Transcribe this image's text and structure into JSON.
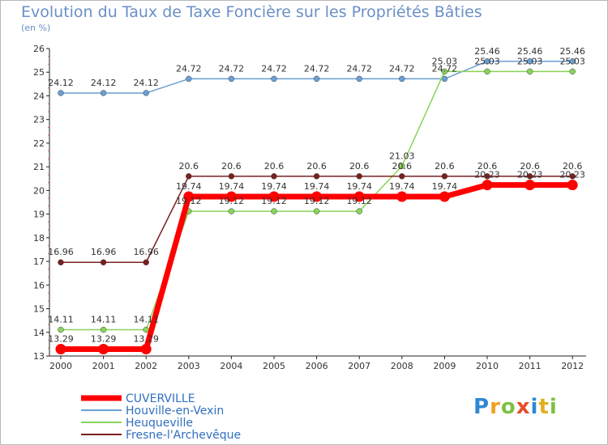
{
  "chart_data": {
    "type": "line",
    "title": "Evolution du Taux de Taxe Foncière sur les Propriétés Bâties",
    "ylabel": "(en %)",
    "xlabel": "",
    "ylim": [
      13,
      26
    ],
    "yticks": [
      13,
      14,
      15,
      16,
      17,
      18,
      19,
      20,
      21,
      22,
      23,
      24,
      25,
      26
    ],
    "categories": [
      "2000",
      "2001",
      "2002",
      "2003",
      "2004",
      "2005",
      "2006",
      "2007",
      "2008",
      "2009",
      "2010",
      "2011",
      "2012"
    ],
    "series": [
      {
        "name": "CUVERVILLE",
        "color": "#ff0000",
        "values": [
          13.29,
          13.29,
          13.29,
          19.74,
          19.74,
          19.74,
          19.74,
          19.74,
          19.74,
          19.74,
          20.23,
          20.23,
          20.23
        ],
        "labels": [
          "13.29",
          "13.29",
          "13.29",
          "19.74",
          "19.74",
          "19.74",
          "19.74",
          "19.74",
          "19.74",
          "19.74",
          "20.23",
          "20.23",
          "20.23"
        ]
      },
      {
        "name": "Houville-en-Vexin",
        "color": "#6a9fd4",
        "values": [
          24.12,
          24.12,
          24.12,
          24.72,
          24.72,
          24.72,
          24.72,
          24.72,
          24.72,
          24.72,
          25.46,
          25.46,
          25.46
        ],
        "labels": [
          "24.12",
          "24.12",
          "24.12",
          "24.72",
          "24.72",
          "24.72",
          "24.72",
          "24.72",
          "24.72",
          "24.72",
          "25.46",
          "25.46",
          "25.46"
        ]
      },
      {
        "name": "Heuqueville",
        "color": "#88d45a",
        "values": [
          14.11,
          14.11,
          14.11,
          19.12,
          19.12,
          19.12,
          19.12,
          19.12,
          21.03,
          25.03,
          25.03,
          25.03,
          25.03
        ],
        "labels": [
          "14.11",
          "14.11",
          "14.11",
          "19.12",
          "19.12",
          "19.12",
          "19.12",
          "19.12",
          "21.03",
          "25.03",
          "25.03",
          "25.03",
          "25.03"
        ]
      },
      {
        "name": "Fresne-l'Archevêque",
        "color": "#7a2020",
        "values": [
          16.96,
          16.96,
          16.96,
          20.6,
          20.6,
          20.6,
          20.6,
          20.6,
          20.6,
          20.6,
          20.6,
          20.6,
          20.6
        ],
        "labels": [
          "16.96",
          "16.96",
          "16.96",
          "20.6",
          "20.6",
          "20.6",
          "20.6",
          "20.6",
          "20.6",
          "20.6",
          "20.6",
          "20.6",
          "20.6"
        ]
      }
    ],
    "legend_position": "bottom-left",
    "grid": false
  },
  "logo": {
    "parts": [
      "P",
      "r",
      "o",
      "x",
      "i",
      "t",
      "i"
    ]
  }
}
